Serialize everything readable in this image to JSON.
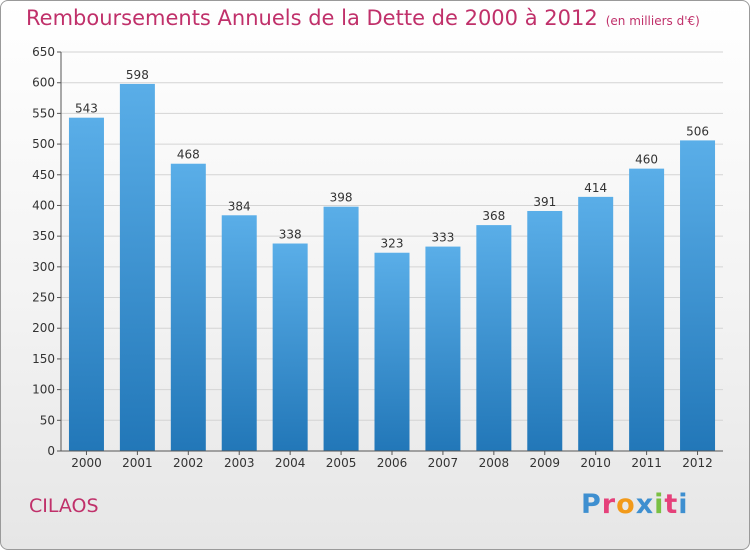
{
  "header": {
    "title": "Remboursements Annuels de la Dette de 2000 à 2012",
    "unit": "(en milliers d'€)"
  },
  "footer": {
    "commune": "CILAOS",
    "logo_letters": [
      "P",
      "r",
      "o",
      "x",
      "i",
      "t",
      "i"
    ],
    "logo_colors": [
      "#3e8fd0",
      "#e5417a",
      "#f29a1a",
      "#3e8fd0",
      "#7ac043",
      "#e5417a",
      "#3e8fd0"
    ]
  },
  "colors": {
    "title": "#c0306a",
    "bar_light": "#5aaee8",
    "bar_dark": "#2277b8",
    "grid": "#d4d4d4",
    "axis": "#555555",
    "label": "#333333"
  },
  "chart_data": {
    "type": "bar",
    "categories": [
      "2000",
      "2001",
      "2002",
      "2003",
      "2004",
      "2005",
      "2006",
      "2007",
      "2008",
      "2009",
      "2010",
      "2011",
      "2012"
    ],
    "values": [
      543,
      598,
      468,
      384,
      338,
      398,
      323,
      333,
      368,
      391,
      414,
      460,
      506
    ],
    "ylim": [
      0,
      650
    ],
    "yticks": [
      0,
      50,
      100,
      150,
      200,
      250,
      300,
      350,
      400,
      450,
      500,
      550,
      600,
      650
    ],
    "grid": true,
    "data_labels": true
  }
}
